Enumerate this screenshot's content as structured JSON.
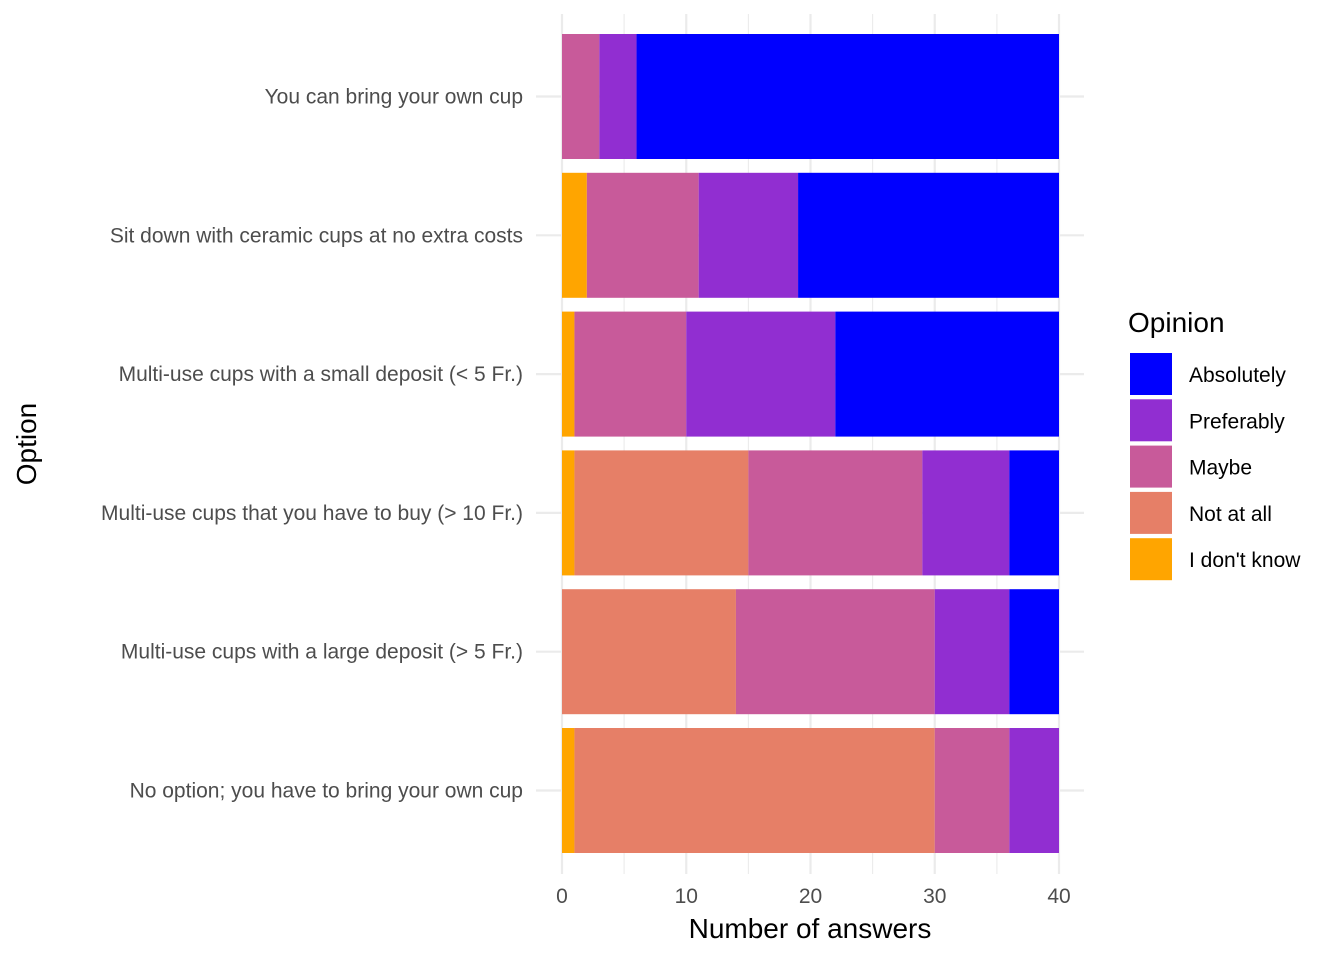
{
  "chart_data": {
    "type": "bar",
    "orientation": "horizontal",
    "stacked": true,
    "xlabel": "Number of answers",
    "ylabel": "Option",
    "xlim": [
      0,
      40
    ],
    "xticks": [
      0,
      10,
      20,
      30,
      40
    ],
    "grid": true,
    "legend_title": "Opinion",
    "legend_position": "right",
    "categories": [
      "You can bring your own cup",
      "Sit down with ceramic cups at no extra costs",
      "Multi-use cups with a small deposit (< 5 Fr.)",
      "Multi-use cups that you have to buy (> 10 Fr.)",
      "Multi-use cups with a large deposit (> 5 Fr.)",
      "No option; you have to bring your own cup"
    ],
    "series": [
      {
        "name": "I don't know",
        "color": "#FFA500",
        "values": [
          0,
          2,
          1,
          1,
          0,
          1
        ]
      },
      {
        "name": "Not at all",
        "color": "#E67F67",
        "values": [
          0,
          0,
          0,
          14,
          14,
          29
        ]
      },
      {
        "name": "Maybe",
        "color": "#C85A9A",
        "values": [
          3,
          9,
          9,
          14,
          16,
          6
        ]
      },
      {
        "name": "Preferably",
        "color": "#912ED1",
        "values": [
          3,
          8,
          12,
          7,
          6,
          4
        ]
      },
      {
        "name": "Absolutely",
        "color": "#0000FF",
        "values": [
          34,
          21,
          18,
          4,
          4,
          0
        ]
      }
    ],
    "legend_order": [
      "Absolutely",
      "Preferably",
      "Maybe",
      "Not at all",
      "I don't know"
    ]
  }
}
